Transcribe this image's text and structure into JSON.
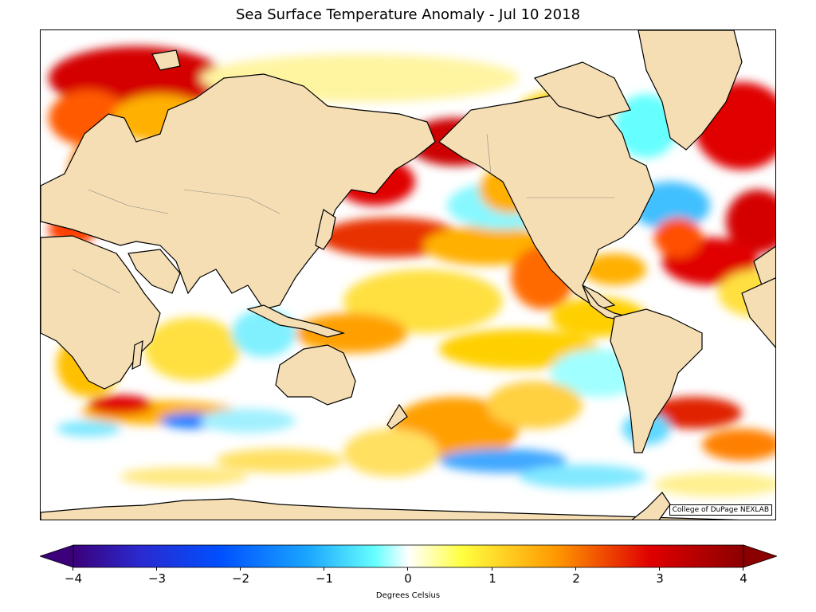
{
  "title": "Sea Surface Temperature Anomaly - Jul 10 2018",
  "credit": "College of DuPage NEXLAB",
  "colorbar": {
    "units_label": "Degrees Celsius",
    "min": -4,
    "max": 4,
    "ticks": [
      "−4",
      "−3",
      "−2",
      "−1",
      "0",
      "1",
      "2",
      "3",
      "4"
    ],
    "colors": [
      "#3b007a",
      "#2a2ad0",
      "#0050ff",
      "#1aa6ff",
      "#66ffff",
      "#ffffff",
      "#ffff40",
      "#ff9900",
      "#e00000",
      "#8b0000"
    ]
  },
  "map": {
    "land_color": "#f5deb3",
    "ocean_color": "#ffffff"
  }
}
